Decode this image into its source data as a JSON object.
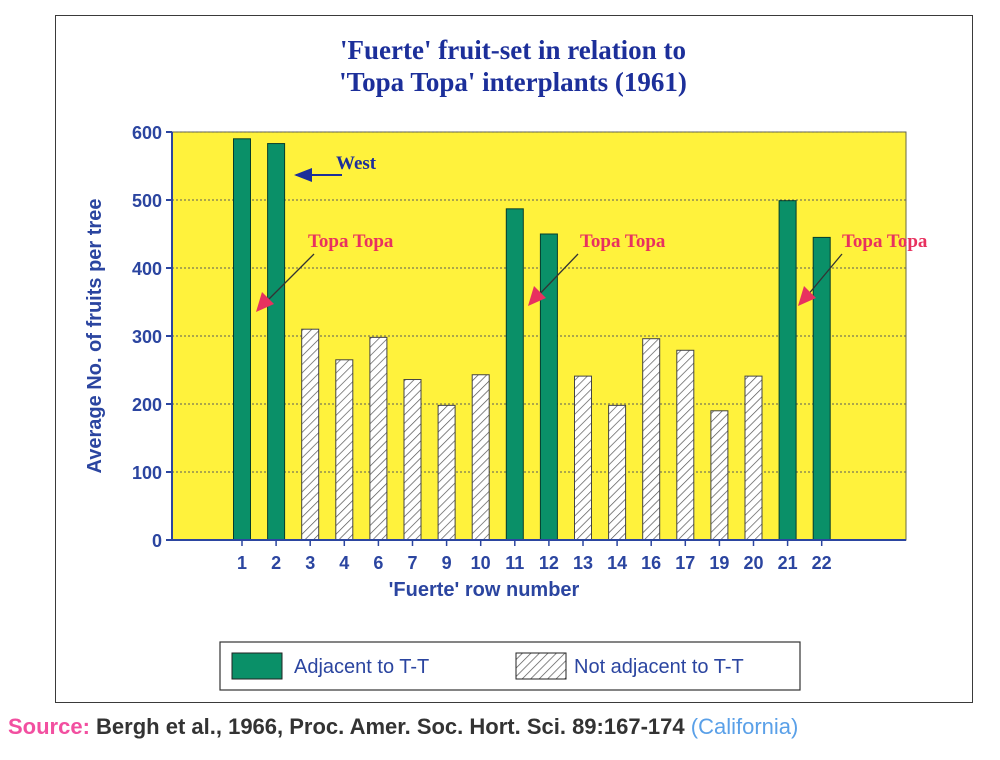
{
  "chart_data": {
    "type": "bar",
    "title_lines": [
      "'Fuerte' fruit-set in relation to",
      "'Topa Topa' interplants (1961)"
    ],
    "xlabel": "'Fuerte' row number",
    "ylabel": "Average No. of fruits per tree",
    "ylim": [
      0,
      600
    ],
    "yticks": [
      "0",
      "100",
      "200",
      "300",
      "400",
      "500",
      "600"
    ],
    "grid": true,
    "categories": [
      "1",
      "2",
      "3",
      "4",
      "6",
      "7",
      "9",
      "10",
      "11",
      "12",
      "13",
      "14",
      "16",
      "17",
      "19",
      "20",
      "21",
      "22"
    ],
    "values": [
      590,
      583,
      310,
      265,
      298,
      236,
      198,
      243,
      487,
      450,
      241,
      198,
      296,
      279,
      190,
      241,
      499,
      445
    ],
    "adjacent": [
      true,
      true,
      false,
      false,
      false,
      false,
      false,
      false,
      true,
      true,
      false,
      false,
      false,
      false,
      false,
      false,
      true,
      true
    ],
    "legend": {
      "position": "bottom",
      "items": [
        {
          "label": "Adjacent to T-T",
          "style": "solid"
        },
        {
          "label": "Not adjacent to T-T",
          "style": "hatched"
        }
      ]
    },
    "annotations": {
      "west": "West",
      "topa": [
        "Topa Topa",
        "Topa Topa",
        "Topa Topa"
      ]
    },
    "colors": {
      "plot_background": "#fff23c",
      "adjacent_bar": "#0a9068",
      "axis_text": "#2b45a0",
      "title": "#1c2f9a",
      "annotation": "#e8315f",
      "west_arrow": "#1c2f9a"
    }
  },
  "source": {
    "label": "Source:",
    "citation": "Bergh et al., 1966, Proc. Amer. Soc. Hort. Sci. 89:167-174",
    "location": "(California)"
  }
}
